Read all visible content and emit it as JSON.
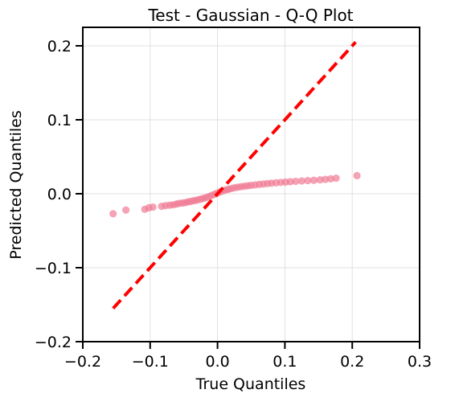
{
  "chart_data": {
    "type": "scatter",
    "title": "Test - Gaussian - Q-Q Plot",
    "xlabel": "True Quantiles",
    "ylabel": "Predicted Quantiles",
    "xlim": [
      -0.2,
      0.3
    ],
    "ylim": [
      -0.2,
      0.225
    ],
    "xticks": [
      -0.2,
      -0.1,
      0.0,
      0.1,
      0.2,
      0.3
    ],
    "xtick_labels": [
      "−0.2",
      "−0.1",
      "0.0",
      "0.1",
      "0.2",
      "0.3"
    ],
    "yticks": [
      -0.2,
      -0.1,
      0.0,
      0.1,
      0.2
    ],
    "ytick_labels": [
      "−0.2",
      "−0.1",
      "0.0",
      "0.1",
      "0.2"
    ],
    "grid": true,
    "series": [
      {
        "kind": "points",
        "color": "#f07a94",
        "x": [
          -0.155,
          -0.136,
          -0.108,
          -0.102,
          -0.096,
          -0.083,
          -0.077,
          -0.071,
          -0.066,
          -0.061,
          -0.057,
          -0.052,
          -0.048,
          -0.044,
          -0.04,
          -0.036,
          -0.032,
          -0.028,
          -0.024,
          -0.02,
          -0.016,
          -0.012,
          -0.008,
          -0.004,
          0.0,
          0.004,
          0.008,
          0.012,
          0.016,
          0.02,
          0.025,
          0.03,
          0.035,
          0.04,
          0.045,
          0.05,
          0.056,
          0.062,
          0.068,
          0.074,
          0.08,
          0.087,
          0.094,
          0.101,
          0.108,
          0.116,
          0.125,
          0.134,
          0.143,
          0.152,
          0.16,
          0.168,
          0.176,
          0.207
        ],
        "y": [
          -0.027,
          -0.022,
          -0.021,
          -0.019,
          -0.018,
          -0.017,
          -0.016,
          -0.0155,
          -0.015,
          -0.014,
          -0.013,
          -0.0125,
          -0.012,
          -0.011,
          -0.0105,
          -0.0095,
          -0.009,
          -0.008,
          -0.007,
          -0.006,
          -0.005,
          -0.0035,
          -0.002,
          -0.0005,
          0.001,
          0.0025,
          0.004,
          0.005,
          0.006,
          0.007,
          0.008,
          0.0088,
          0.0095,
          0.0102,
          0.0108,
          0.0114,
          0.012,
          0.0126,
          0.0132,
          0.0138,
          0.0143,
          0.0148,
          0.0153,
          0.0158,
          0.0163,
          0.0168,
          0.0173,
          0.0178,
          0.0182,
          0.0188,
          0.0195,
          0.0202,
          0.021,
          0.0245
        ]
      },
      {
        "kind": "line",
        "color": "#ff0000",
        "style": "dashed",
        "x": [
          -0.155,
          0.205
        ],
        "y": [
          -0.155,
          0.205
        ]
      }
    ]
  }
}
